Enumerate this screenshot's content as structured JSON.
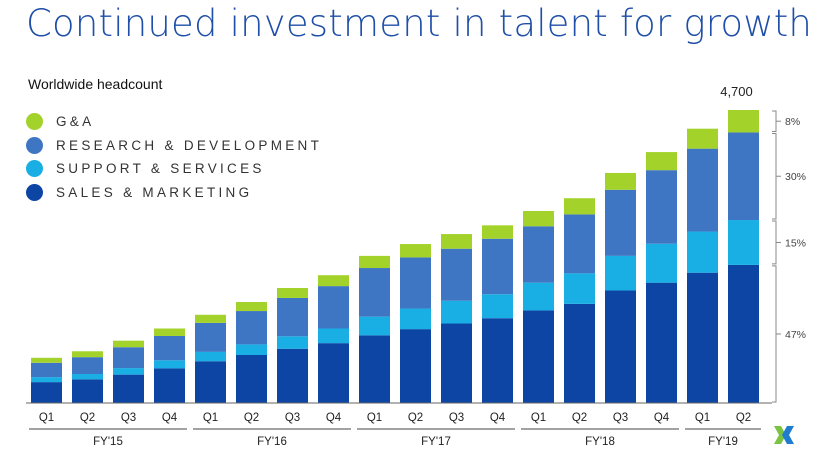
{
  "slide_title": "Continued investment in talent for growth",
  "colors": {
    "ga": "#a3d32b",
    "rd": "#3e76c3",
    "ss": "#19afe4",
    "sm": "#0d45a4",
    "title": "#1f4fa8",
    "axis": "#666666",
    "bracket": "#888888"
  },
  "logo": {
    "icon": "nutanix-x-logo-icon"
  },
  "chart_data": {
    "type": "bar",
    "stacked": true,
    "title": "Worldwide headcount",
    "legend_position": "top-left",
    "grid": false,
    "ylim": [
      0,
      4700
    ],
    "categories": [
      "Q1",
      "Q2",
      "Q3",
      "Q4",
      "Q1",
      "Q2",
      "Q3",
      "Q4",
      "Q1",
      "Q2",
      "Q3",
      "Q4",
      "Q1",
      "Q2",
      "Q3",
      "Q4",
      "Q1",
      "Q2"
    ],
    "groups": [
      {
        "label": "FY'15",
        "count": 4
      },
      {
        "label": "FY'16",
        "count": 4
      },
      {
        "label": "FY'17",
        "count": 4
      },
      {
        "label": "FY'18",
        "count": 4
      },
      {
        "label": "FY'19",
        "count": 2
      }
    ],
    "series": [
      {
        "key": "sm",
        "name": "SALES & MARKETING",
        "values": [
          335,
          380,
          455,
          555,
          670,
          770,
          870,
          960,
          1085,
          1185,
          1275,
          1360,
          1485,
          1590,
          1805,
          1930,
          2090,
          2215
        ]
      },
      {
        "key": "ss",
        "name": "SUPPORT & SERVICES",
        "values": [
          80,
          85,
          105,
          130,
          150,
          170,
          200,
          235,
          300,
          330,
          365,
          385,
          445,
          490,
          555,
          625,
          660,
          720
        ]
      },
      {
        "key": "rd",
        "name": "RESEARCH & DEVELOPMENT",
        "values": [
          230,
          270,
          335,
          390,
          465,
          535,
          615,
          680,
          780,
          820,
          835,
          890,
          905,
          945,
          1060,
          1180,
          1330,
          1405
        ]
      },
      {
        "key": "ga",
        "name": "G&A",
        "values": [
          80,
          95,
          105,
          120,
          130,
          145,
          160,
          175,
          195,
          215,
          235,
          215,
          245,
          260,
          270,
          290,
          320,
          360
        ]
      }
    ],
    "legend_order": [
      "ga",
      "rd",
      "ss",
      "sm"
    ],
    "total_label": {
      "index": 17,
      "text": "4,700"
    },
    "share_labels": [
      {
        "series": "ga",
        "text": "8%"
      },
      {
        "series": "rd",
        "text": "30%"
      },
      {
        "series": "ss",
        "text": "15%"
      },
      {
        "series": "sm",
        "text": "47%"
      }
    ]
  }
}
